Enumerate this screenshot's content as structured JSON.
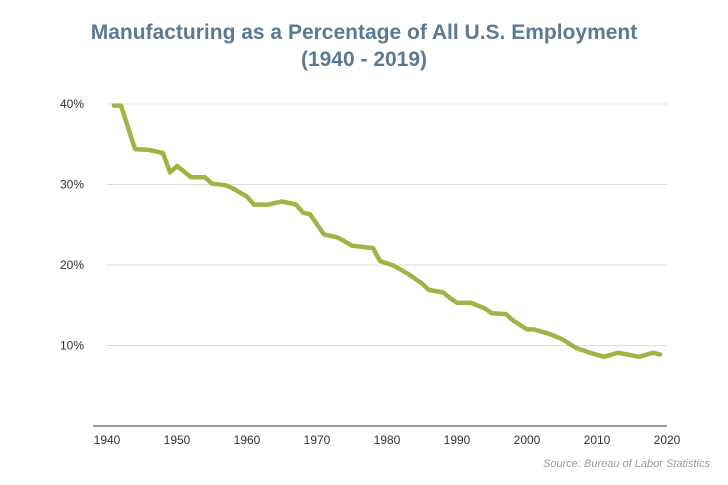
{
  "title": "Manufacturing as a Percentage of All U.S. Employment",
  "subtitle": "(1940 - 2019)",
  "source": "Source: Bureau of Labor Statistics",
  "colors": {
    "line": "#9fb446",
    "title": "#5a7a94",
    "grid": "#dcdcdc",
    "axis": "#333333",
    "source": "#9a9a9a"
  },
  "chart_data": {
    "type": "line",
    "title": "Manufacturing as a Percentage of All U.S. Employment",
    "subtitle": "(1940 - 2019)",
    "xlabel": "",
    "ylabel": "",
    "xlim": [
      1940,
      2020
    ],
    "ylim": [
      0,
      40
    ],
    "x_ticks": [
      1940,
      1950,
      1960,
      1970,
      1980,
      1990,
      2000,
      2010,
      2020
    ],
    "x_tick_labels": [
      "1940",
      "1950",
      "1960",
      "1970",
      "1980",
      "1990",
      "2000",
      "2010",
      "2020"
    ],
    "y_ticks": [
      10,
      20,
      30,
      40
    ],
    "y_tick_labels": [
      "10%",
      "20%",
      "30%",
      "40%"
    ],
    "grid": "horizontal",
    "legend": "none",
    "series": [
      {
        "x": [
          1941,
          1942,
          1944,
          1946,
          1948,
          1949,
          1950,
          1952,
          1954,
          1955,
          1957,
          1958,
          1960,
          1961,
          1963,
          1965,
          1967,
          1968,
          1969,
          1971,
          1973,
          1975,
          1977,
          1978,
          1979,
          1981,
          1983,
          1985,
          1986,
          1988,
          1989,
          1990,
          1991,
          1992,
          1994,
          1995,
          1997,
          1998,
          2000,
          2001,
          2003,
          2005,
          2007,
          2009,
          2011,
          2013,
          2016,
          2018,
          2019
        ],
        "y": [
          39.8,
          39.8,
          34.4,
          34.3,
          33.9,
          31.5,
          32.3,
          30.9,
          30.9,
          30.1,
          29.9,
          29.5,
          28.5,
          27.5,
          27.5,
          27.9,
          27.5,
          26.5,
          26.3,
          23.8,
          23.4,
          22.4,
          22.2,
          22.1,
          20.5,
          19.9,
          18.9,
          17.7,
          16.9,
          16.6,
          15.9,
          15.3,
          15.3,
          15.3,
          14.6,
          14.0,
          13.9,
          13.1,
          12.0,
          12.0,
          11.5,
          10.8,
          9.7,
          9.1,
          8.6,
          9.1,
          8.6,
          9.1,
          8.9
        ]
      }
    ]
  }
}
